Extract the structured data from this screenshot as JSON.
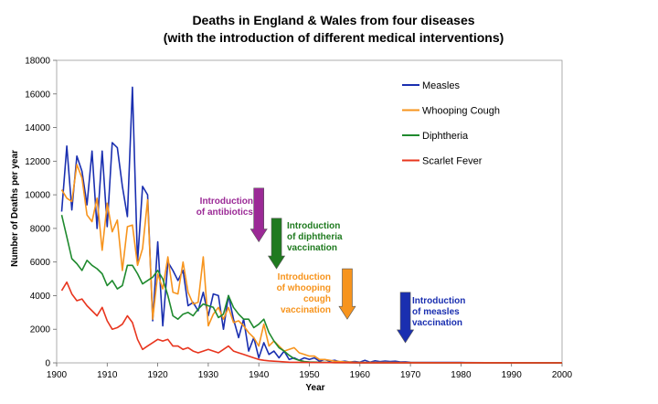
{
  "chart_data": {
    "type": "line",
    "title": "Deaths in England & Wales from four diseases",
    "subtitle": "(with the introduction of different medical interventions)",
    "xlabel": "Year",
    "ylabel": "Number of Deaths per year",
    "xlim": [
      1900,
      2000
    ],
    "ylim": [
      0,
      18000
    ],
    "x_ticks": [
      "1900",
      "1910",
      "1920",
      "1930",
      "1940",
      "1950",
      "1960",
      "1970",
      "1980",
      "1990",
      "2000"
    ],
    "y_ticks": [
      "0",
      "2000",
      "4000",
      "6000",
      "8000",
      "10000",
      "12000",
      "14000",
      "16000",
      "18000"
    ],
    "grid": false,
    "legend_position": "top-right",
    "series": [
      {
        "name": "Measles",
        "color": "#1a2fb0",
        "points": [
          [
            1901,
            9000
          ],
          [
            1902,
            12900
          ],
          [
            1903,
            9100
          ],
          [
            1904,
            12300
          ],
          [
            1905,
            11400
          ],
          [
            1906,
            9400
          ],
          [
            1907,
            12600
          ],
          [
            1908,
            8000
          ],
          [
            1909,
            12600
          ],
          [
            1910,
            8100
          ],
          [
            1911,
            13100
          ],
          [
            1912,
            12800
          ],
          [
            1913,
            10500
          ],
          [
            1914,
            8700
          ],
          [
            1915,
            16400
          ],
          [
            1916,
            6000
          ],
          [
            1917,
            10500
          ],
          [
            1918,
            10000
          ],
          [
            1919,
            2500
          ],
          [
            1920,
            7200
          ],
          [
            1921,
            2200
          ],
          [
            1922,
            6000
          ],
          [
            1923,
            5500
          ],
          [
            1924,
            4900
          ],
          [
            1925,
            5500
          ],
          [
            1926,
            3400
          ],
          [
            1927,
            3600
          ],
          [
            1928,
            3100
          ],
          [
            1929,
            4200
          ],
          [
            1930,
            2800
          ],
          [
            1931,
            4100
          ],
          [
            1932,
            4000
          ],
          [
            1933,
            2000
          ],
          [
            1934,
            4000
          ],
          [
            1935,
            2600
          ],
          [
            1936,
            1500
          ],
          [
            1937,
            2600
          ],
          [
            1938,
            700
          ],
          [
            1939,
            1500
          ],
          [
            1940,
            300
          ],
          [
            1941,
            1200
          ],
          [
            1942,
            500
          ],
          [
            1943,
            700
          ],
          [
            1944,
            300
          ],
          [
            1945,
            700
          ],
          [
            1946,
            200
          ],
          [
            1947,
            300
          ],
          [
            1948,
            150
          ],
          [
            1949,
            300
          ],
          [
            1950,
            200
          ],
          [
            1951,
            300
          ],
          [
            1952,
            100
          ],
          [
            1953,
            200
          ],
          [
            1954,
            100
          ],
          [
            1955,
            150
          ],
          [
            1956,
            60
          ],
          [
            1957,
            100
          ],
          [
            1958,
            50
          ],
          [
            1959,
            80
          ],
          [
            1960,
            40
          ],
          [
            1961,
            150
          ],
          [
            1962,
            40
          ],
          [
            1963,
            120
          ],
          [
            1964,
            70
          ],
          [
            1965,
            110
          ],
          [
            1966,
            80
          ],
          [
            1967,
            100
          ],
          [
            1968,
            50
          ],
          [
            1969,
            60
          ],
          [
            1970,
            30
          ],
          [
            1975,
            20
          ],
          [
            1980,
            20
          ],
          [
            1985,
            10
          ],
          [
            1990,
            10
          ],
          [
            2000,
            5
          ]
        ]
      },
      {
        "name": "Whooping Cough",
        "color": "#f7941d",
        "points": [
          [
            1901,
            10300
          ],
          [
            1902,
            9800
          ],
          [
            1903,
            9600
          ],
          [
            1904,
            11800
          ],
          [
            1905,
            11000
          ],
          [
            1906,
            8800
          ],
          [
            1907,
            8400
          ],
          [
            1908,
            9800
          ],
          [
            1909,
            6700
          ],
          [
            1910,
            9500
          ],
          [
            1911,
            7800
          ],
          [
            1912,
            8500
          ],
          [
            1913,
            5500
          ],
          [
            1914,
            8100
          ],
          [
            1915,
            8200
          ],
          [
            1916,
            5800
          ],
          [
            1917,
            6800
          ],
          [
            1918,
            9700
          ],
          [
            1919,
            2600
          ],
          [
            1920,
            5300
          ],
          [
            1921,
            4400
          ],
          [
            1922,
            6300
          ],
          [
            1923,
            4200
          ],
          [
            1924,
            4100
          ],
          [
            1925,
            6000
          ],
          [
            1926,
            4200
          ],
          [
            1927,
            3500
          ],
          [
            1928,
            3600
          ],
          [
            1929,
            6300
          ],
          [
            1930,
            2200
          ],
          [
            1931,
            2900
          ],
          [
            1932,
            3300
          ],
          [
            1933,
            2600
          ],
          [
            1934,
            3300
          ],
          [
            1935,
            2400
          ],
          [
            1936,
            2500
          ],
          [
            1937,
            2200
          ],
          [
            1938,
            1800
          ],
          [
            1939,
            1500
          ],
          [
            1940,
            1000
          ],
          [
            1941,
            2300
          ],
          [
            1942,
            1000
          ],
          [
            1943,
            1300
          ],
          [
            1944,
            1000
          ],
          [
            1945,
            700
          ],
          [
            1946,
            800
          ],
          [
            1947,
            900
          ],
          [
            1948,
            600
          ],
          [
            1949,
            500
          ],
          [
            1950,
            400
          ],
          [
            1951,
            400
          ],
          [
            1952,
            200
          ],
          [
            1953,
            200
          ],
          [
            1954,
            150
          ],
          [
            1955,
            100
          ],
          [
            1956,
            80
          ],
          [
            1957,
            60
          ],
          [
            1958,
            50
          ],
          [
            1959,
            30
          ],
          [
            1960,
            20
          ],
          [
            1965,
            20
          ],
          [
            1970,
            15
          ],
          [
            1975,
            10
          ],
          [
            1980,
            10
          ],
          [
            1990,
            5
          ],
          [
            2000,
            5
          ]
        ]
      },
      {
        "name": "Diphtheria",
        "color": "#1f8a2e",
        "points": [
          [
            1901,
            8800
          ],
          [
            1902,
            7500
          ],
          [
            1903,
            6200
          ],
          [
            1904,
            5900
          ],
          [
            1905,
            5500
          ],
          [
            1906,
            6100
          ],
          [
            1907,
            5800
          ],
          [
            1908,
            5600
          ],
          [
            1909,
            5300
          ],
          [
            1910,
            4600
          ],
          [
            1911,
            4900
          ],
          [
            1912,
            4400
          ],
          [
            1913,
            4600
          ],
          [
            1914,
            5800
          ],
          [
            1915,
            5800
          ],
          [
            1916,
            5300
          ],
          [
            1917,
            4700
          ],
          [
            1918,
            4900
          ],
          [
            1919,
            5100
          ],
          [
            1920,
            5500
          ],
          [
            1921,
            5000
          ],
          [
            1922,
            4000
          ],
          [
            1923,
            2800
          ],
          [
            1924,
            2600
          ],
          [
            1925,
            2900
          ],
          [
            1926,
            3000
          ],
          [
            1927,
            2800
          ],
          [
            1928,
            3200
          ],
          [
            1929,
            3500
          ],
          [
            1930,
            3400
          ],
          [
            1931,
            3300
          ],
          [
            1932,
            2700
          ],
          [
            1933,
            2900
          ],
          [
            1934,
            4000
          ],
          [
            1935,
            3300
          ],
          [
            1936,
            2900
          ],
          [
            1937,
            2600
          ],
          [
            1938,
            2600
          ],
          [
            1939,
            2100
          ],
          [
            1940,
            2300
          ],
          [
            1941,
            2600
          ],
          [
            1942,
            1800
          ],
          [
            1943,
            1300
          ],
          [
            1944,
            900
          ],
          [
            1945,
            700
          ],
          [
            1946,
            450
          ],
          [
            1947,
            250
          ],
          [
            1948,
            150
          ],
          [
            1949,
            80
          ],
          [
            1950,
            50
          ],
          [
            1955,
            10
          ],
          [
            1960,
            5
          ],
          [
            1970,
            0
          ],
          [
            2000,
            0
          ]
        ]
      },
      {
        "name": "Scarlet Fever",
        "color": "#e8351e",
        "points": [
          [
            1901,
            4300
          ],
          [
            1902,
            4800
          ],
          [
            1903,
            4100
          ],
          [
            1904,
            3700
          ],
          [
            1905,
            3800
          ],
          [
            1906,
            3400
          ],
          [
            1907,
            3100
          ],
          [
            1908,
            2800
          ],
          [
            1909,
            3300
          ],
          [
            1910,
            2500
          ],
          [
            1911,
            2000
          ],
          [
            1912,
            2100
          ],
          [
            1913,
            2300
          ],
          [
            1914,
            2800
          ],
          [
            1915,
            2400
          ],
          [
            1916,
            1400
          ],
          [
            1917,
            800
          ],
          [
            1918,
            1000
          ],
          [
            1919,
            1200
          ],
          [
            1920,
            1400
          ],
          [
            1921,
            1300
          ],
          [
            1922,
            1400
          ],
          [
            1923,
            1000
          ],
          [
            1924,
            1000
          ],
          [
            1925,
            800
          ],
          [
            1926,
            900
          ],
          [
            1927,
            700
          ],
          [
            1928,
            600
          ],
          [
            1929,
            700
          ],
          [
            1930,
            800
          ],
          [
            1931,
            700
          ],
          [
            1932,
            600
          ],
          [
            1933,
            800
          ],
          [
            1934,
            1000
          ],
          [
            1935,
            700
          ],
          [
            1936,
            600
          ],
          [
            1937,
            500
          ],
          [
            1938,
            400
          ],
          [
            1939,
            300
          ],
          [
            1940,
            200
          ],
          [
            1941,
            150
          ],
          [
            1942,
            120
          ],
          [
            1943,
            100
          ],
          [
            1944,
            80
          ],
          [
            1945,
            60
          ],
          [
            1946,
            40
          ],
          [
            1950,
            20
          ],
          [
            1960,
            5
          ],
          [
            2000,
            0
          ]
        ]
      }
    ],
    "annotations": [
      {
        "text": [
          "Introduction",
          "of antibiotics"
        ],
        "color": "#9b2a96",
        "arrow_year": 1940.0,
        "arrow_top": 10400,
        "arrow_bottom": 7200
      },
      {
        "text": [
          "Introduction",
          "of diphtheria",
          "vaccination"
        ],
        "color": "#1f7a1f",
        "arrow_year": 1943.5,
        "arrow_top": 8600,
        "arrow_bottom": 5600
      },
      {
        "text": [
          "Introduction",
          "of whooping",
          "cough",
          "vaccination"
        ],
        "color": "#f7941d",
        "arrow_year": 1957.5,
        "arrow_top": 5600,
        "arrow_bottom": 2600
      },
      {
        "text": [
          "Introduction",
          "of measles",
          "vaccination"
        ],
        "color": "#1a2fb0",
        "arrow_year": 1969.0,
        "arrow_top": 4200,
        "arrow_bottom": 1200
      }
    ]
  }
}
